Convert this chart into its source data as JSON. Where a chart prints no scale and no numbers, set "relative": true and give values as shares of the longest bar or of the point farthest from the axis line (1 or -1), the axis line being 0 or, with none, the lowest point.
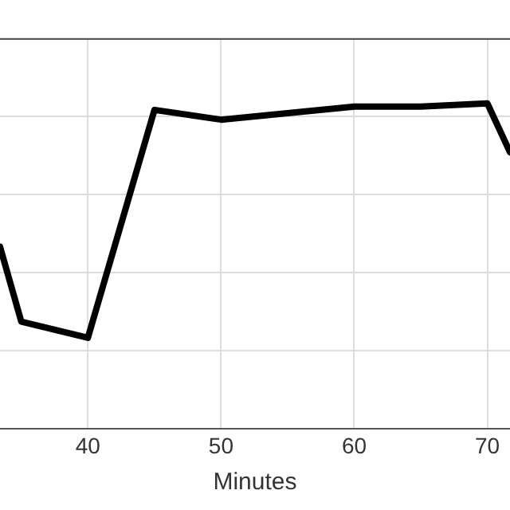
{
  "chart_data": {
    "type": "line",
    "xlabel": "Minutes",
    "relative": true,
    "x": [
      33.4,
      35,
      40,
      45,
      50,
      55,
      60,
      65,
      70,
      71.7
    ],
    "series": [
      {
        "color": "#000000",
        "values": [
          0.56,
          0.33,
          0.28,
          0.98,
          0.95,
          0.97,
          0.99,
          0.99,
          1,
          0.85
        ]
      }
    ],
    "xlim": [
      33.4,
      71.7
    ],
    "xticks": [
      40,
      50,
      60,
      70
    ],
    "grid": true,
    "legend": false,
    "marker": "none",
    "line_style": "solid"
  }
}
